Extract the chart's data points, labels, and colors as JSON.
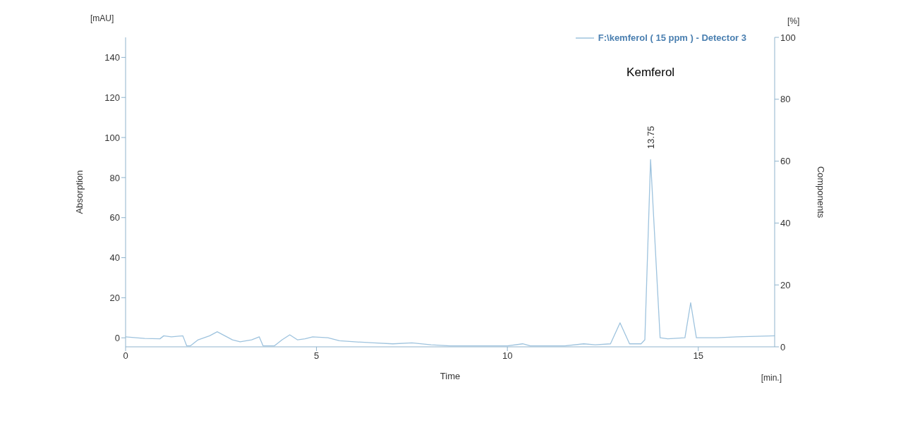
{
  "chart_data": {
    "type": "line",
    "xlabel": "Time",
    "ylabel": "Absorption",
    "y2label": "Components",
    "x": [
      0,
      0.5,
      0.9,
      1.0,
      1.2,
      1.5,
      1.6,
      1.7,
      1.9,
      2.2,
      2.4,
      2.6,
      2.8,
      3.0,
      3.3,
      3.5,
      3.6,
      3.9,
      4.1,
      4.3,
      4.5,
      4.7,
      4.9,
      5.3,
      5.6,
      6.0,
      6.5,
      7.0,
      7.5,
      8.0,
      8.5,
      9.0,
      10.0,
      10.4,
      10.6,
      11.5,
      12.0,
      12.3,
      12.7,
      12.95,
      13.2,
      13.5,
      13.6,
      13.75,
      14.0,
      14.2,
      14.65,
      14.8,
      14.95,
      15.5,
      16.0,
      17.0
    ],
    "series": [
      {
        "name": "F:\\kemferol ( 15 ppm ) - Detector 3",
        "color": "#9ec3de",
        "values": [
          0.5,
          -0.3,
          -0.5,
          1,
          0.5,
          1,
          -4,
          -4,
          -1,
          1,
          3,
          1,
          -1,
          -2,
          -1,
          0.5,
          -4,
          -4,
          -1,
          1.5,
          -1,
          -0.5,
          0.5,
          0,
          -1.5,
          -2,
          -2.5,
          -3,
          -2.5,
          -3.5,
          -4,
          -4,
          -4,
          -3,
          -4,
          -4,
          -3,
          -3.5,
          -3,
          7.5,
          -3,
          -3,
          -1,
          89,
          0,
          -0.5,
          0,
          17.5,
          0,
          0,
          0.5,
          1
        ]
      }
    ],
    "xlim": [
      0,
      17
    ],
    "xticks": [
      0,
      5,
      10,
      15
    ],
    "ylim": [
      -4.5,
      150
    ],
    "yticks": [
      0,
      20,
      40,
      60,
      80,
      100,
      120,
      140
    ],
    "y2lim": [
      0,
      100
    ],
    "y2ticks": [
      0,
      20,
      40,
      60,
      80,
      {
        "value": 100,
        "label": "100"
      }
    ],
    "grid": false,
    "legend": "top right",
    "marker": "none",
    "line_style": "solid",
    "annotations": [
      "[mAU]",
      "[%]",
      "[min.]",
      "Kemferol",
      {
        "text": "13.75",
        "x": 13.75,
        "y": 89
      }
    ]
  }
}
